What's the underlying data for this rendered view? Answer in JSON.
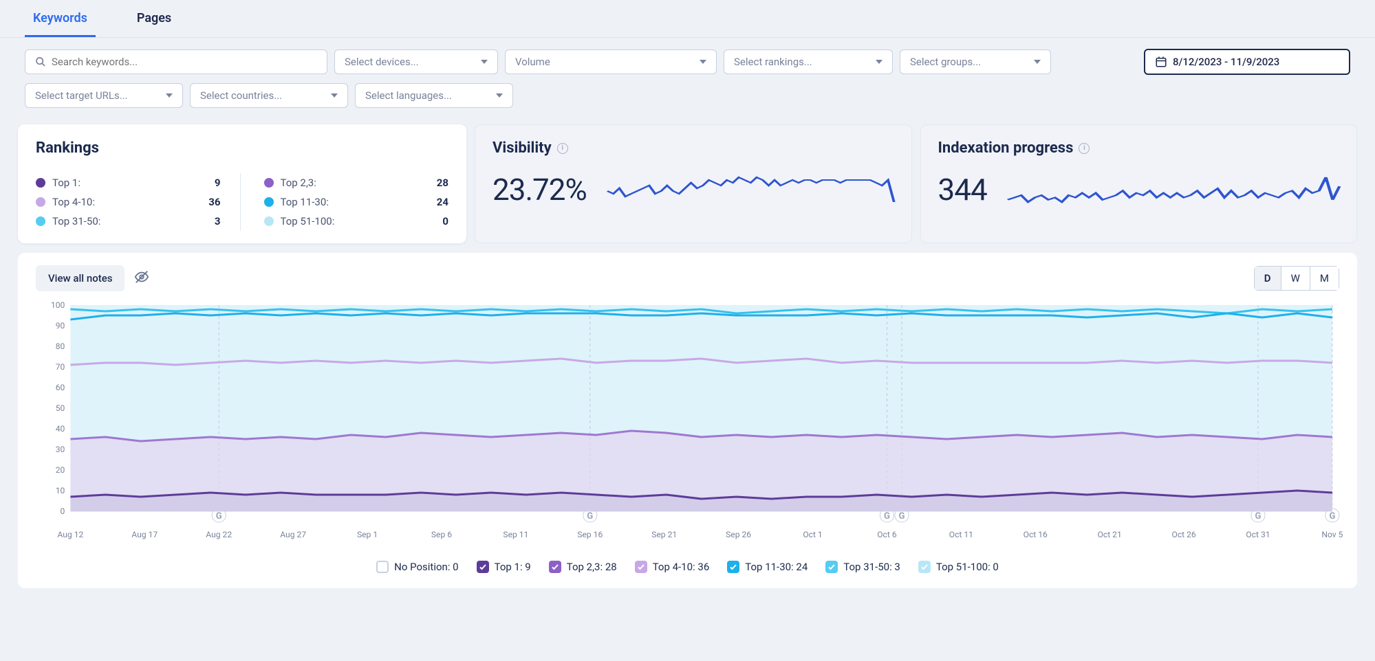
{
  "tabs": {
    "keywords": "Keywords",
    "pages": "Pages",
    "active": "keywords"
  },
  "filters": {
    "search_placeholder": "Search keywords...",
    "devices": "Select devices...",
    "volume": "Volume",
    "rankings": "Select rankings...",
    "groups": "Select groups...",
    "target_urls": "Select target URLs...",
    "countries": "Select countries...",
    "languages": "Select languages...",
    "date_range": "8/12/2023 - 11/9/2023"
  },
  "rankings": {
    "title": "Rankings",
    "items": [
      {
        "label": "Top 1:",
        "value": 9,
        "color": "#5d3c99"
      },
      {
        "label": "Top 2,3:",
        "value": 28,
        "color": "#8c60c8"
      },
      {
        "label": "Top 4-10:",
        "value": 36,
        "color": "#c7a8e6"
      },
      {
        "label": "Top 11-30:",
        "value": 24,
        "color": "#1db0ea"
      },
      {
        "label": "Top 31-50:",
        "value": 3,
        "color": "#54cdf1"
      },
      {
        "label": "Top 51-100:",
        "value": 0,
        "color": "#b7e7f7"
      }
    ]
  },
  "visibility": {
    "title": "Visibility",
    "value": "23.72%",
    "spark_color": "#2e55d0",
    "series": [
      48,
      47,
      49,
      46,
      47,
      48,
      49,
      50,
      47,
      48,
      50,
      48,
      47,
      49,
      51,
      49,
      50,
      52,
      51,
      50,
      52,
      51,
      53,
      52,
      51,
      53,
      52,
      50,
      52,
      50,
      51,
      52,
      51,
      52,
      52,
      51,
      52,
      52,
      52,
      51,
      52,
      52,
      52,
      52,
      52,
      51,
      50,
      52,
      44
    ]
  },
  "indexation": {
    "title": "Indexation progress",
    "value": "344",
    "spark_color": "#2e55d0",
    "series": [
      48,
      49,
      50,
      47,
      49,
      50,
      48,
      49,
      47,
      50,
      49,
      51,
      49,
      51,
      48,
      49,
      50,
      52,
      49,
      51,
      50,
      52,
      49,
      51,
      49,
      51,
      49,
      50,
      52,
      49,
      51,
      53,
      49,
      52,
      49,
      50,
      52,
      49,
      51,
      50,
      49,
      51,
      52,
      49,
      53,
      51,
      52,
      58,
      48,
      54
    ]
  },
  "notes": {
    "view_all_label": "View all notes",
    "segments": {
      "d": "D",
      "w": "W",
      "m": "M",
      "active": "d"
    }
  },
  "chart": {
    "ylim": [
      0,
      100
    ],
    "yticks": [
      0,
      10,
      20,
      30,
      40,
      50,
      60,
      70,
      80,
      90,
      100
    ],
    "xlabels": [
      "Aug 12",
      "Aug 17",
      "Aug 22",
      "Aug 27",
      "Sep 1",
      "Sep 6",
      "Sep 11",
      "Sep 16",
      "Sep 21",
      "Sep 26",
      "Oct 1",
      "Oct 6",
      "Oct 11",
      "Oct 16",
      "Oct 21",
      "Oct 26",
      "Oct 31",
      "Nov 5"
    ],
    "markers": [
      2,
      7,
      11,
      11.2,
      16,
      17
    ],
    "colors": {
      "top51_100_fill": "#dff3fb",
      "top31_50_line": "#36c1ec",
      "top11_30_line": "#1db0ea",
      "top4_10_line": "#c7a8e6",
      "top2_3_line": "#9e78d0",
      "top1_line": "#5d3c99",
      "top1_fill": "#d3cbe9",
      "top2_3_fill": "#e2d4f0"
    },
    "series": {
      "top31_50": [
        98,
        97,
        98,
        97,
        98,
        97,
        98,
        97,
        98,
        97,
        98,
        97,
        98,
        97,
        98,
        97,
        98,
        97,
        98,
        96,
        97,
        98,
        97,
        98,
        97,
        98,
        97,
        98,
        97,
        98,
        97,
        98,
        97,
        96,
        98,
        97,
        98
      ],
      "top11_30": [
        93,
        95,
        95,
        96,
        95,
        96,
        95,
        96,
        95,
        96,
        95,
        96,
        95,
        96,
        96,
        96,
        95,
        95,
        96,
        95,
        95,
        95,
        96,
        95,
        96,
        95,
        95,
        95,
        95,
        94,
        95,
        96,
        94,
        96,
        94,
        96,
        94
      ],
      "top4_10": [
        71,
        72,
        72,
        71,
        72,
        73,
        72,
        73,
        72,
        73,
        72,
        73,
        72,
        73,
        74,
        72,
        73,
        73,
        74,
        72,
        73,
        74,
        72,
        73,
        72,
        72,
        72,
        72,
        72,
        72,
        73,
        72,
        73,
        72,
        73,
        73,
        72
      ],
      "top2_3": [
        35,
        36,
        34,
        35,
        36,
        35,
        36,
        35,
        37,
        36,
        38,
        37,
        36,
        37,
        38,
        37,
        39,
        38,
        36,
        37,
        36,
        37,
        36,
        37,
        36,
        35,
        36,
        37,
        36,
        37,
        38,
        36,
        37,
        36,
        35,
        37,
        36
      ],
      "top1": [
        7,
        8,
        7,
        8,
        9,
        8,
        9,
        8,
        8,
        8,
        9,
        8,
        9,
        8,
        9,
        8,
        7,
        8,
        6,
        7,
        6,
        7,
        7,
        8,
        7,
        8,
        7,
        8,
        9,
        8,
        9,
        8,
        7,
        8,
        9,
        10,
        9
      ]
    },
    "legend": [
      {
        "label": "No Position: 0",
        "color": "#ffffff",
        "checked": false,
        "border": true
      },
      {
        "label": "Top 1: 9",
        "color": "#5d3c99",
        "checked": true
      },
      {
        "label": "Top 2,3: 28",
        "color": "#8c60c8",
        "checked": true
      },
      {
        "label": "Top 4-10: 36",
        "color": "#c7a8e6",
        "checked": true
      },
      {
        "label": "Top 11-30: 24",
        "color": "#1db0ea",
        "checked": true
      },
      {
        "label": "Top 31-50: 3",
        "color": "#54cdf1",
        "checked": true
      },
      {
        "label": "Top 51-100: 0",
        "color": "#b7e7f7",
        "checked": true
      }
    ]
  }
}
